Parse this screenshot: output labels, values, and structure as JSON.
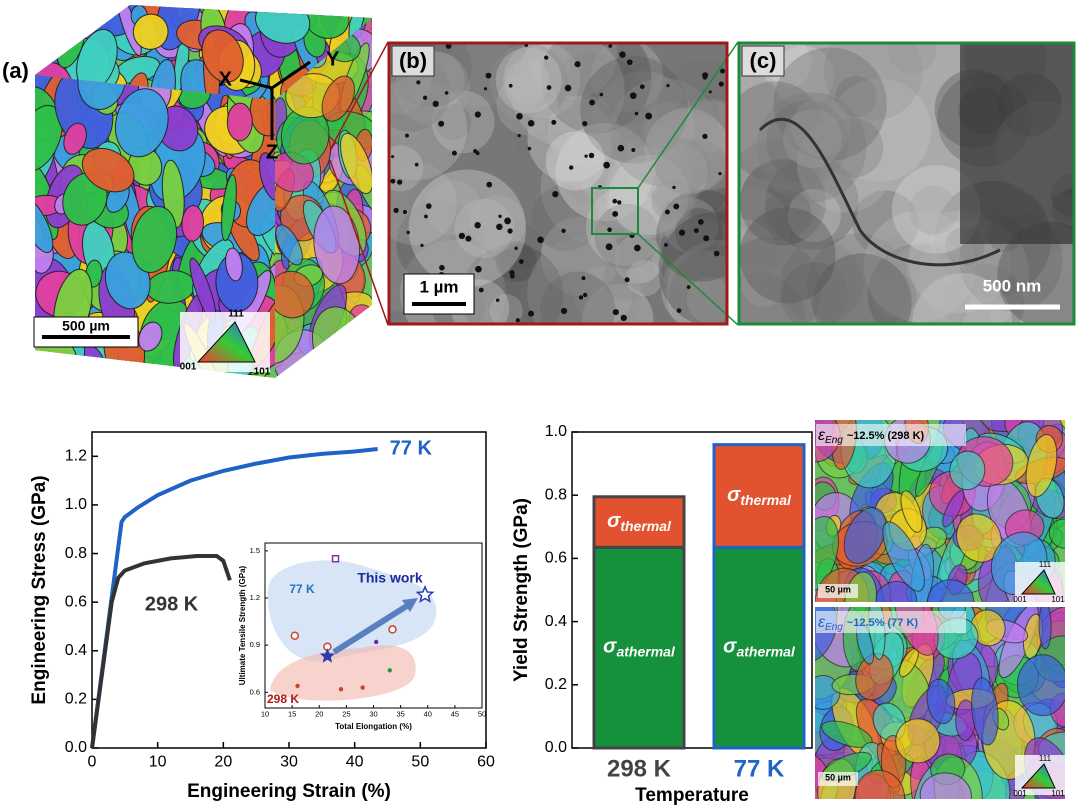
{
  "panels": {
    "a": {
      "label": "(a)",
      "axes": [
        "X",
        "Y",
        "Z"
      ],
      "scale_bar": "500 µm",
      "ipf": [
        "111",
        "001",
        "101"
      ]
    },
    "b": {
      "label": "(b)",
      "scale_bar": "1 µm"
    },
    "c": {
      "label": "(c)",
      "scale_bar": "500 nm"
    },
    "ebsd": [
      {
        "symbol": "ε",
        "subscript": "Eng",
        "text": "~12.5% (298 K)",
        "scale_bar": "50 µm",
        "ipf": [
          "111",
          "001",
          "101"
        ]
      },
      {
        "symbol": "ε",
        "subscript": "Eng",
        "text": "~12.5% (77 K)",
        "scale_bar": "50 µm",
        "ipf": [
          "111",
          "001",
          "101"
        ]
      }
    ]
  },
  "chart_data": [
    {
      "type": "line",
      "xlabel": "Engineering Strain (%)",
      "ylabel": "Engineering Stress (GPa)",
      "xlim": [
        0,
        60
      ],
      "xticks": [
        0,
        10,
        20,
        30,
        40,
        50,
        60
      ],
      "ylim": [
        0,
        1.3
      ],
      "yticks": [
        {
          "value": 0,
          "label": "0.0"
        },
        0.2,
        0.4,
        0.6,
        0.8,
        {
          "value": 1,
          "label": "1.0"
        },
        1.2
      ],
      "series": [
        {
          "name": "77 K",
          "color": "#1f63c6",
          "x": [
            0,
            4.5,
            5,
            7,
            10,
            15,
            20,
            25,
            30,
            35,
            40,
            43.5
          ],
          "values": [
            0,
            0.93,
            0.95,
            0.99,
            1.04,
            1.1,
            1.14,
            1.17,
            1.195,
            1.21,
            1.22,
            1.23
          ]
        },
        {
          "name": "298 K",
          "color": "#333333",
          "x": [
            0,
            3,
            4,
            5,
            8,
            12,
            16,
            19,
            20,
            21
          ],
          "values": [
            0,
            0.6,
            0.7,
            0.73,
            0.76,
            0.78,
            0.79,
            0.79,
            0.77,
            0.69
          ]
        }
      ]
    },
    {
      "type": "scatter",
      "xlabel": "Total Elongation (%)",
      "ylabel": "Ultimate Tensile Strength (GPa)",
      "xlim": [
        10,
        50
      ],
      "xticks": [
        10,
        15,
        20,
        25,
        30,
        35,
        40,
        45,
        50
      ],
      "ylim": [
        0.5,
        1.55
      ],
      "yticks": [
        0.6,
        0.9,
        1.2,
        1.5
      ],
      "series": [
        {
          "name": "77 K",
          "color": "#2a6fc0",
          "x": [
            15.5,
            21.5,
            23,
            33.5
          ],
          "values": [
            0.96,
            0.89,
            1.45,
            1.0
          ],
          "marker_colors": [
            "#d0402a",
            "#d0402a",
            "#7a3aa0",
            "#d0402a"
          ],
          "markers": [
            "circle",
            "circle",
            "square",
            "circle"
          ]
        },
        {
          "name": "298 K",
          "color": "#b01c1c",
          "x": [
            16,
            24,
            28,
            30.5,
            33
          ],
          "values": [
            0.64,
            0.62,
            0.63,
            0.92,
            0.74
          ],
          "marker_colors": [
            "#d0402a",
            "#d0402a",
            "#d0402a",
            "#6a2aa0",
            "#2a9a3a"
          ],
          "markers": [
            "dot",
            "dot",
            "dot",
            "dot",
            "dot"
          ]
        },
        {
          "name": "This work",
          "color": "#1a2a9a",
          "x": [
            21.5,
            39.5
          ],
          "values": [
            0.83,
            1.22
          ],
          "marker_colors": [
            "#2a3ab0",
            "#2a3ab0"
          ],
          "markers": [
            "star",
            "star-open"
          ]
        }
      ]
    },
    {
      "type": "stacked_bar",
      "ylabel": "Yield Strength (GPa)",
      "xlabel": "Temperature",
      "categories": [
        "298 K",
        "77 K"
      ],
      "category_colors": [
        "#444444",
        "#1f63c6"
      ],
      "ylim": [
        0,
        1
      ],
      "yticks": [
        {
          "value": 0,
          "label": "0.0"
        },
        0.2,
        0.4,
        0.6,
        0.8,
        {
          "value": 1,
          "label": "1.0"
        }
      ],
      "series": [
        {
          "name": "σ",
          "subscript": "athermal",
          "color": "#14913a",
          "values": [
            0.635,
            0.635
          ]
        },
        {
          "name": "σ",
          "subscript": "thermal",
          "color": "#e2522e",
          "values": [
            0.16,
            0.325
          ]
        }
      ]
    }
  ]
}
